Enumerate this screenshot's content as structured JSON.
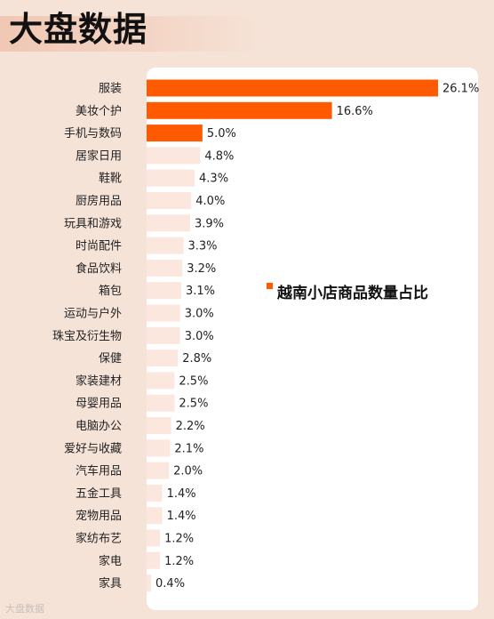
{
  "page": {
    "title": "大盘数据"
  },
  "legend": {
    "label": "越南小店商品数量占比"
  },
  "watermark": {
    "text": "大盘数据"
  },
  "colors": {
    "bar": "#ff5a00",
    "bar_faint": "#fbe7de",
    "text": "#222222",
    "background": "#f6e3d8",
    "panel": "#ffffff"
  },
  "chart_data": {
    "type": "bar",
    "orientation": "horizontal",
    "title": "越南小店商品数量占比",
    "categories": [
      "服装",
      "美妆个护",
      "手机与数码",
      "居家日用",
      "鞋靴",
      "厨房用品",
      "玩具和游戏",
      "时尚配件",
      "食品饮料",
      "箱包",
      "运动与户外",
      "珠宝及衍生物",
      "保健",
      "家装建材",
      "母婴用品",
      "电脑办公",
      "爱好与收藏",
      "汽车用品",
      "五金工具",
      "宠物用品",
      "家纺布艺",
      "家电",
      "家具"
    ],
    "values": [
      26.1,
      16.6,
      5.0,
      4.8,
      4.3,
      4.0,
      3.9,
      3.3,
      3.2,
      3.1,
      3.0,
      3.0,
      2.8,
      2.5,
      2.5,
      2.2,
      2.1,
      2.0,
      1.4,
      1.4,
      1.2,
      1.2,
      0.4
    ],
    "value_labels": [
      "26.1%",
      "16.6%",
      "5.0%",
      "4.8%",
      "4.3%",
      "4.0%",
      "3.9%",
      "3.3%",
      "3.2%",
      "3.1%",
      "3.0%",
      "3.0%",
      "2.8%",
      "2.5%",
      "2.5%",
      "2.2%",
      "2.1%",
      "2.0%",
      "1.4%",
      "1.4%",
      "1.2%",
      "1.2%",
      "0.4%"
    ],
    "highlighted_top_n": 3,
    "xlim": [
      0,
      26.1
    ],
    "grid": false,
    "legend_position": "right-middle"
  }
}
